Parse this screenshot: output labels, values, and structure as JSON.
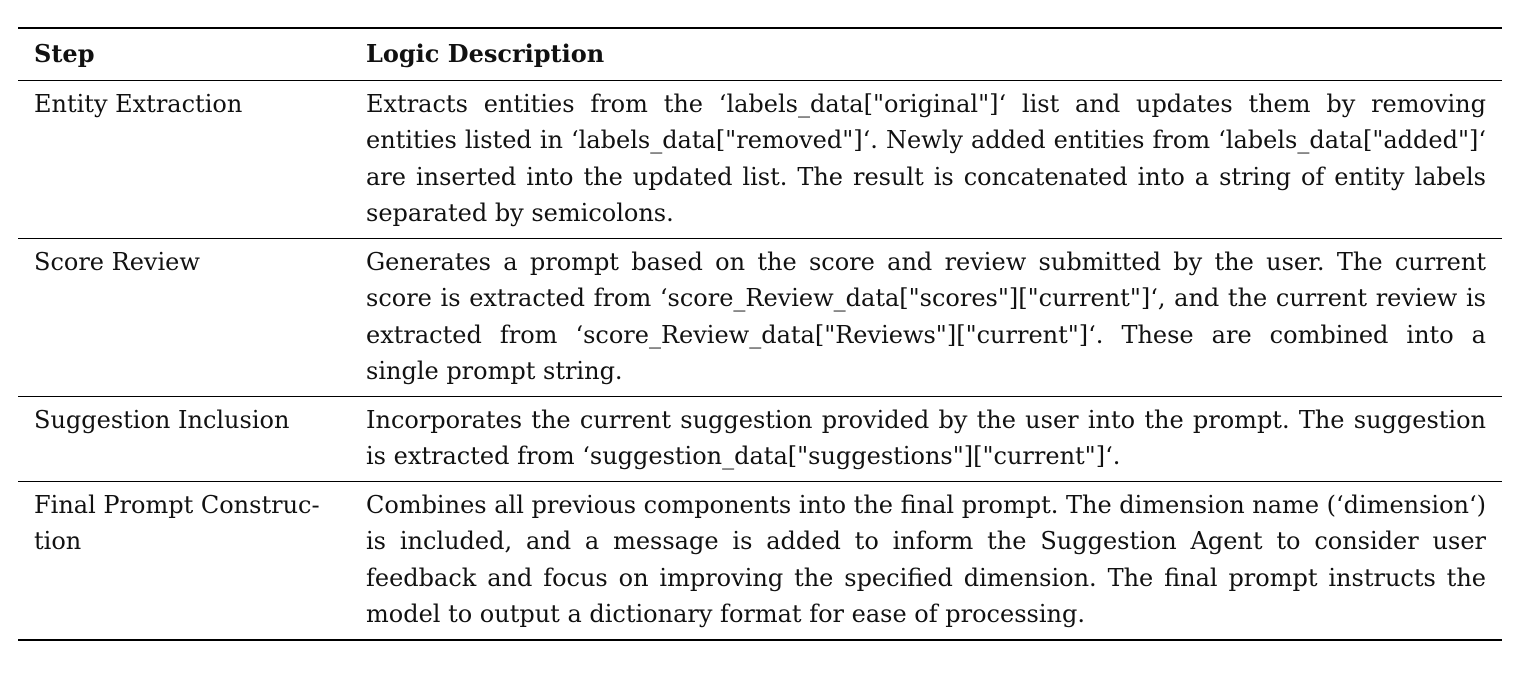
{
  "table": {
    "headers": {
      "step": "Step",
      "description": "Logic Description"
    },
    "rows": [
      {
        "step": "Entity Extraction",
        "description": "Extracts entities from the ‘labels_data[\"original\"]‘ list and updates them by removing entities listed in ‘labels_data[\"removed\"]‘. Newly added entities from ‘labels_data[\"added\"]‘ are inserted into the updated list. The result is concatenated into a string of entity labels separated by semicolons."
      },
      {
        "step": "Score Review",
        "description": "Generates a prompt based on the score and review submitted by the user. The current score is extracted from ‘score_Review_data[\"scores\"][\"current\"]‘, and the current review is extracted from ‘score_Review_data[\"Reviews\"][\"current\"]‘. These are combined into a single prompt string."
      },
      {
        "step": "Suggestion Inclusion",
        "description": "Incorporates the current suggestion provided by the user into the prompt. The suggestion is extracted from ‘suggestion_data[\"suggestions\"][\"current\"]‘."
      },
      {
        "step": "Final Prompt Construc-tion",
        "description": "Combines all previous components into the final prompt. The dimension name (‘dimension‘) is included, and a message is added to inform the Suggestion Agent to consider user feedback and focus on improving the specified dimension. The final prompt instructs the model to output a dictionary format for ease of processing."
      }
    ]
  }
}
